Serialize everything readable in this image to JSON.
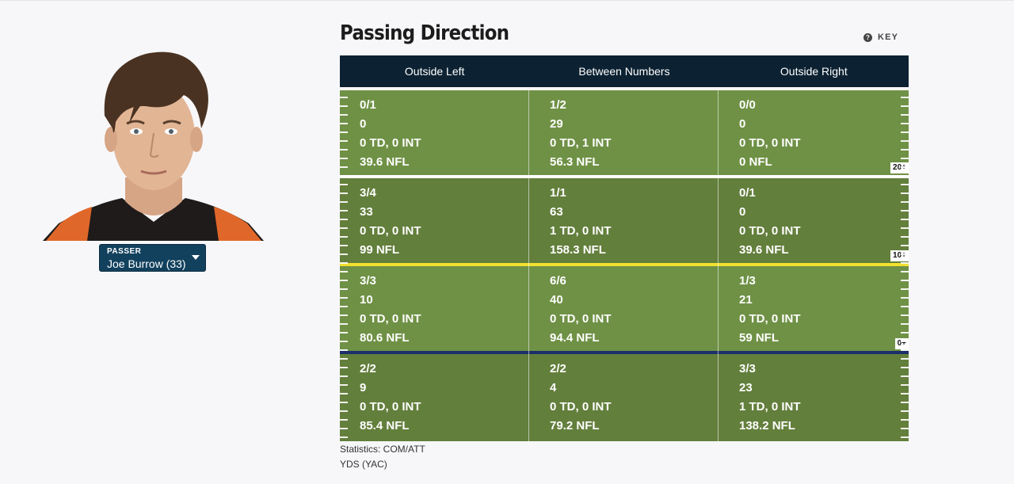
{
  "player": {
    "selector_label": "PASSER",
    "selector_value": "Joe Burrow (33)"
  },
  "header": {
    "title": "Passing Direction",
    "key_icon": "help-circle-icon",
    "key_label": "KEY"
  },
  "columns": [
    "Outside Left",
    "Between Numbers",
    "Outside Right"
  ],
  "zones": [
    {
      "tag": "20+",
      "cells": [
        {
          "comp_att": "0/1",
          "yds": "0",
          "td_int": "0 TD, 0 INT",
          "rating": "39.6 NFL"
        },
        {
          "comp_att": "1/2",
          "yds": "29",
          "td_int": "0 TD, 1 INT",
          "rating": "56.3 NFL"
        },
        {
          "comp_att": "0/0",
          "yds": "0",
          "td_int": "0 TD, 0 INT",
          "rating": "0 NFL"
        }
      ]
    },
    {
      "tag": "10+",
      "cells": [
        {
          "comp_att": "3/4",
          "yds": "33",
          "td_int": "0 TD, 0 INT",
          "rating": "99 NFL"
        },
        {
          "comp_att": "1/1",
          "yds": "63",
          "td_int": "1 TD, 0 INT",
          "rating": "158.3 NFL"
        },
        {
          "comp_att": "0/1",
          "yds": "0",
          "td_int": "0 TD, 0 INT",
          "rating": "39.6 NFL"
        }
      ]
    },
    {
      "tag": "0+",
      "cells": [
        {
          "comp_att": "3/3",
          "yds": "10",
          "td_int": "0 TD, 0 INT",
          "rating": "80.6 NFL"
        },
        {
          "comp_att": "6/6",
          "yds": "40",
          "td_int": "0 TD, 0 INT",
          "rating": "94.4 NFL"
        },
        {
          "comp_att": "1/3",
          "yds": "21",
          "td_int": "0 TD, 0 INT",
          "rating": "59 NFL"
        }
      ]
    },
    {
      "tag": "",
      "cells": [
        {
          "comp_att": "2/2",
          "yds": "9",
          "td_int": "0 TD, 0 INT",
          "rating": "85.4 NFL"
        },
        {
          "comp_att": "2/2",
          "yds": "4",
          "td_int": "0 TD, 0 INT",
          "rating": "79.2 NFL"
        },
        {
          "comp_att": "3/3",
          "yds": "23",
          "td_int": "1 TD, 0 INT",
          "rating": "138.2 NFL"
        }
      ]
    }
  ],
  "legend": {
    "line1": "Statistics: COM/ATT",
    "line2": "YDS (YAC)"
  },
  "colors": {
    "header_bg": "#0c2232",
    "field_light": "#6f9145",
    "field_dark": "#637f3c",
    "first_down_line": "#f2e12f",
    "line_of_scrimmage": "#1c2f6b",
    "selector_bg": "#12415e"
  }
}
